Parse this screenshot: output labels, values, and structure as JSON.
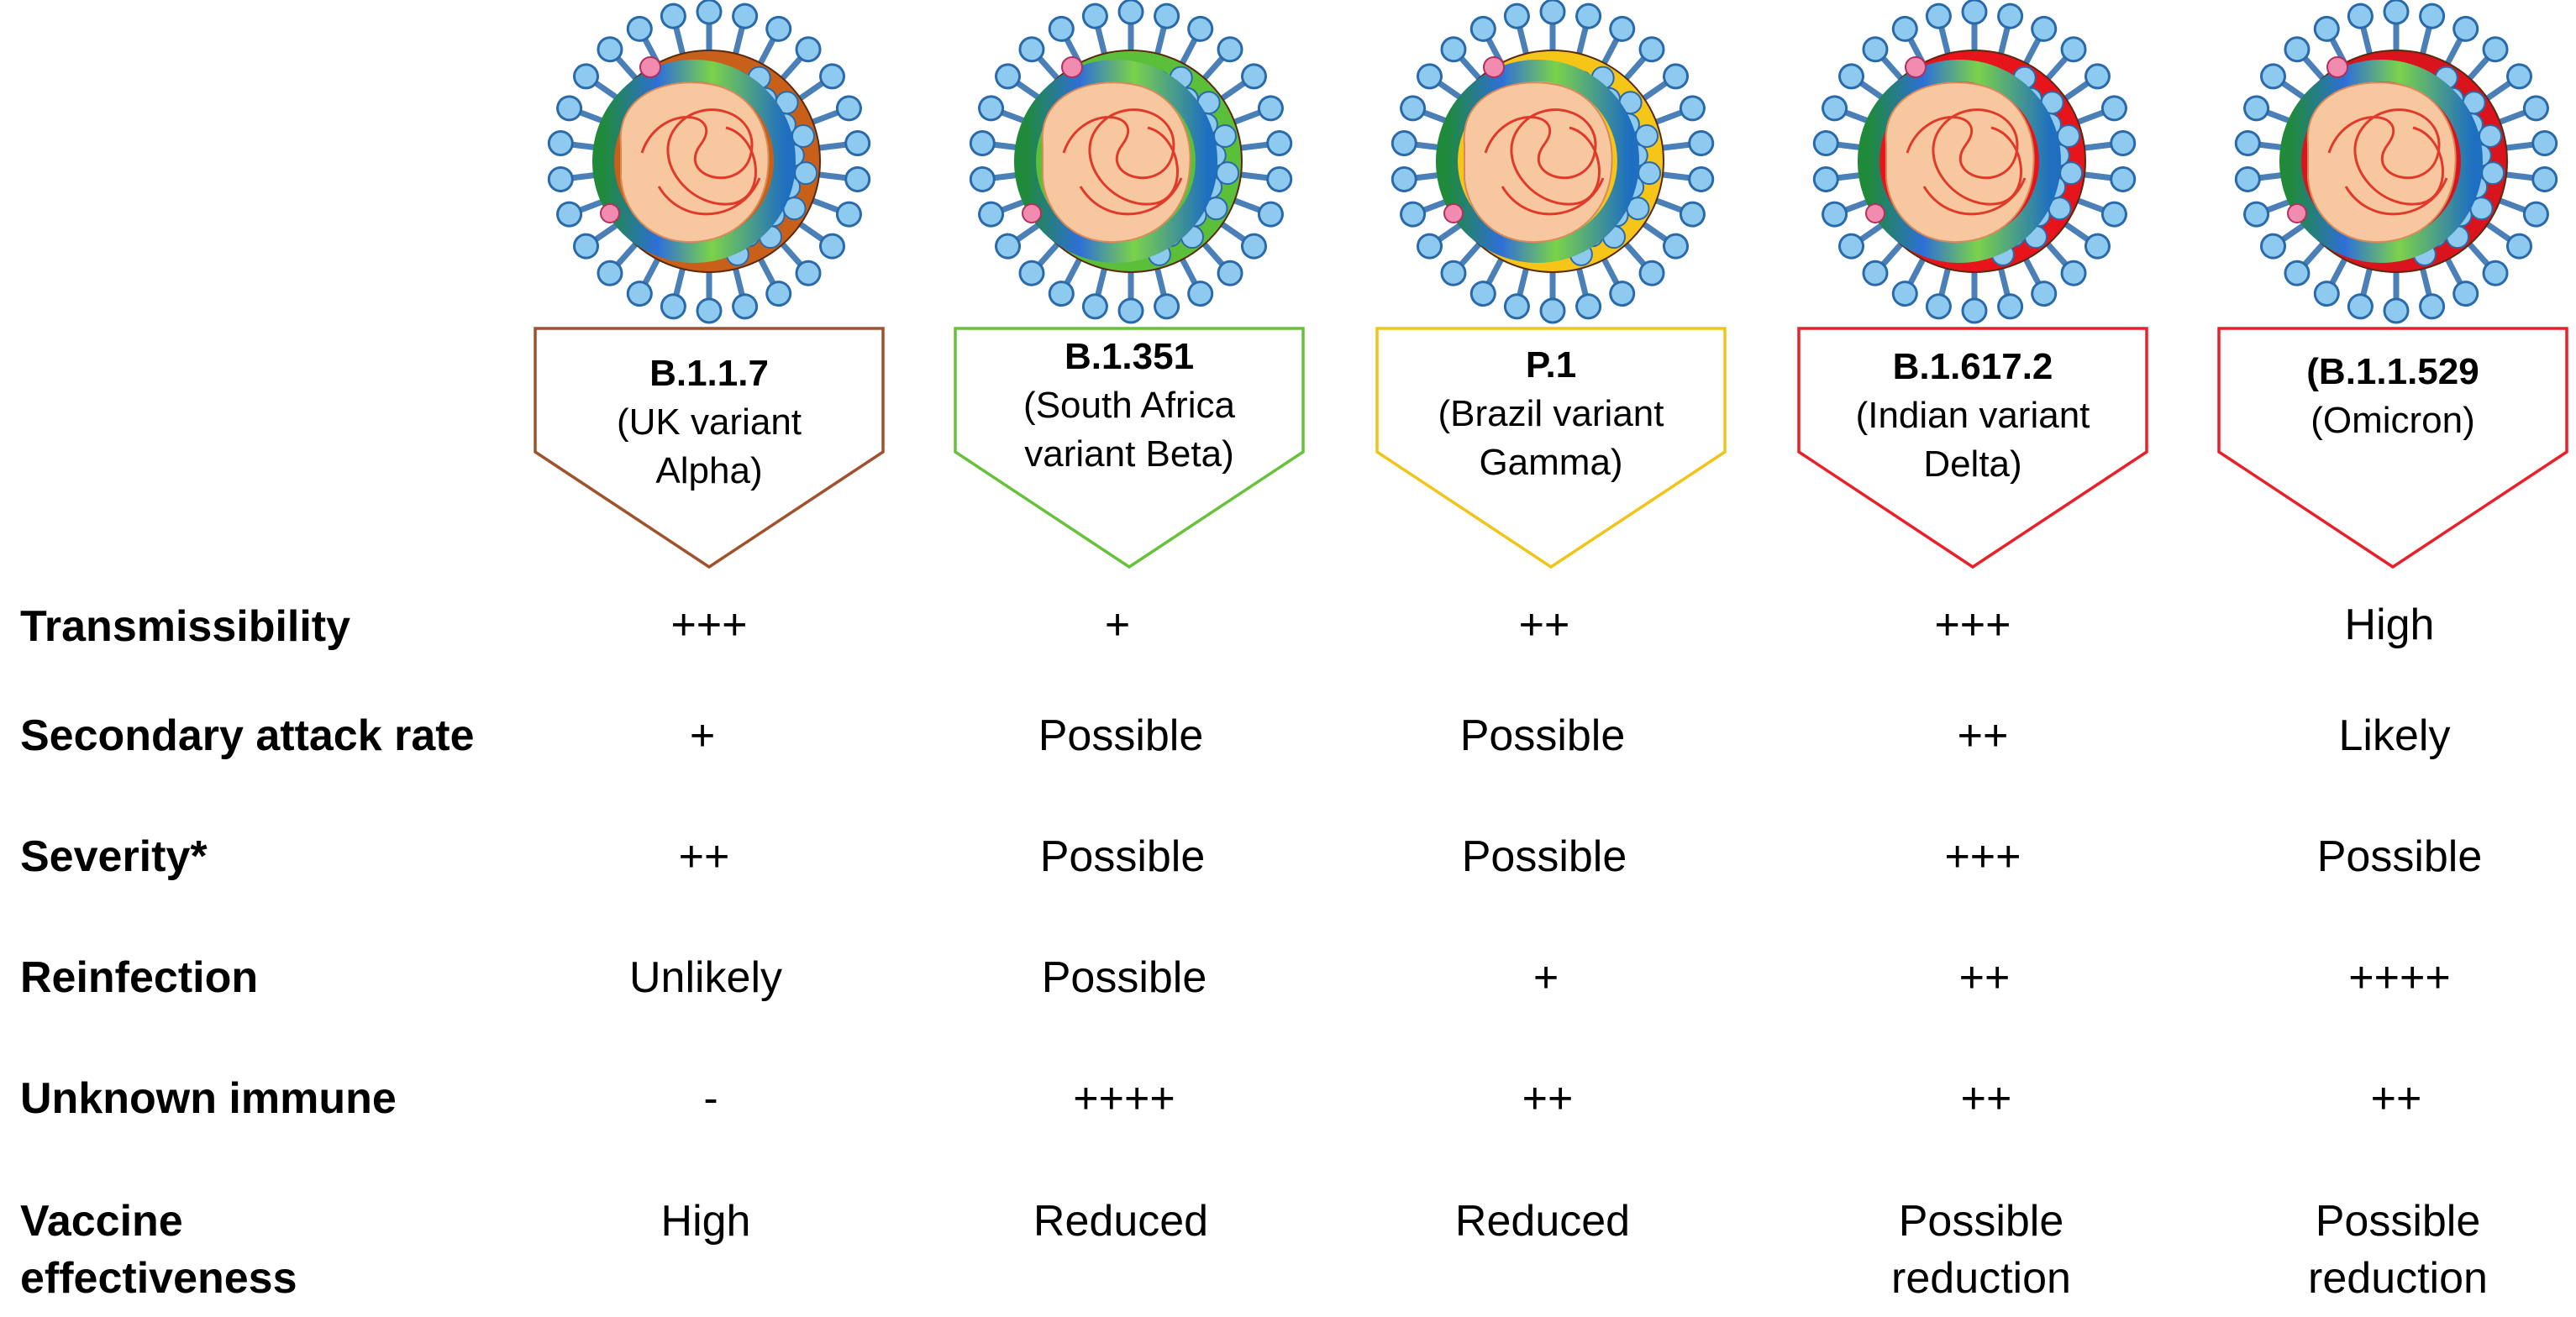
{
  "variants": [
    {
      "code": "B.1.1.7",
      "name": "(UK variant Alpha)",
      "line1": "(UK variant",
      "line2": "Alpha)",
      "color": "#a0522d",
      "envelope": "#c8601a"
    },
    {
      "code": "B.1.351",
      "name": "(South Africa variant Beta)",
      "line1": "(South Africa",
      "line2": "variant Beta)",
      "color": "#66c23a",
      "envelope": "#5cbf3a"
    },
    {
      "code": "P.1",
      "name": "(Brazil variant Gamma)",
      "line1": "(Brazil variant",
      "line2": "Gamma)",
      "color": "#f0c419",
      "envelope": "#f5c518"
    },
    {
      "code": "B.1.617.2",
      "name": "(Indian variant Delta)",
      "line1": "(Indian variant",
      "line2": "Delta)",
      "color": "#e8202a",
      "envelope": "#e8141c"
    },
    {
      "code": "(B.1.1.529",
      "name": "(Omicron)",
      "line1": "(Omicron)",
      "line2": "",
      "color": "#e8202a",
      "envelope": "#d9141c"
    }
  ],
  "rows": [
    {
      "label": "Transmissibility",
      "values": [
        "+++",
        "+",
        "++",
        "+++",
        "High"
      ]
    },
    {
      "label": "Secondary attack rate",
      "values": [
        "+",
        "Possible",
        "Possible",
        "++",
        "Likely"
      ]
    },
    {
      "label": "Severity*",
      "values": [
        "++",
        "Possible",
        "Possible",
        "+++",
        "Possible"
      ]
    },
    {
      "label": "Reinfection",
      "values": [
        "Unlikely",
        "Possible",
        "+",
        "++",
        "++++"
      ]
    },
    {
      "label": "Unknown immune",
      "values": [
        "-",
        "++++",
        "++",
        "++",
        "++"
      ]
    },
    {
      "label": "Vaccine effectiveness",
      "label_line1": "Vaccine",
      "label_line2": "effectiveness",
      "values": [
        "High",
        "Reduced",
        "Reduced",
        "Possible reduction",
        "Possible reduction"
      ],
      "values_line1": [
        "High",
        "Reduced",
        "Reduced",
        "Possible",
        "Possible"
      ],
      "values_line2": [
        "",
        "",
        "",
        "reduction",
        "reduction"
      ]
    }
  ]
}
